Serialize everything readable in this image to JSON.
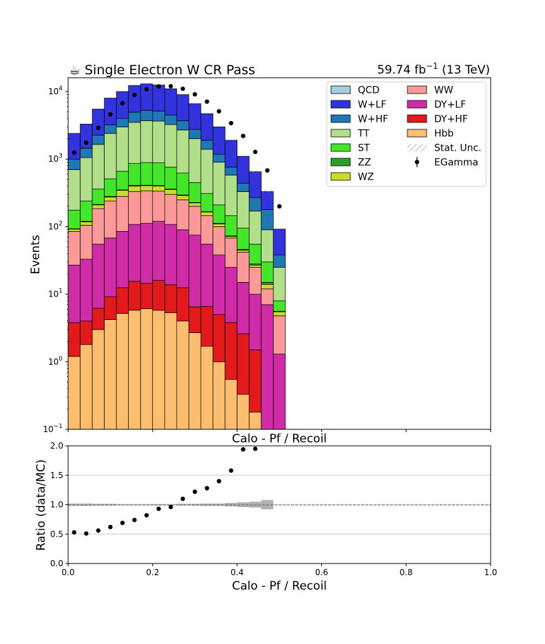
{
  "header": {
    "title_icon": "☕",
    "title": "Single Electron W CR Pass",
    "lumi": "59.74 fb",
    "lumi_exp": "−1",
    "energy": " (13 TeV)"
  },
  "chart_data": [
    {
      "type": "stacked-histogram",
      "ylabel": "Events",
      "yscale": "log",
      "ylim": [
        0.1,
        16000
      ],
      "xlim": [
        0,
        1
      ],
      "bin_width": 0.02857,
      "n_bins": 18,
      "ytick_labels": [
        {
          "value": 0.1,
          "base": "10",
          "exp": "−1"
        },
        {
          "value": 1,
          "base": "10",
          "exp": "0"
        },
        {
          "value": 10,
          "base": "10",
          "exp": "1"
        },
        {
          "value": 100,
          "base": "10",
          "exp": "2"
        },
        {
          "value": 1000,
          "base": "10",
          "exp": "3"
        },
        {
          "value": 10000,
          "base": "10",
          "exp": "4"
        }
      ],
      "legend": {
        "placement": "top-right",
        "entries": [
          {
            "label": "QCD",
            "color": "#a6cee3",
            "kind": "box"
          },
          {
            "label": "W+LF",
            "color": "#3333dd",
            "kind": "box"
          },
          {
            "label": "W+HF",
            "color": "#1f78b4",
            "kind": "box"
          },
          {
            "label": "TT",
            "color": "#b2df8a",
            "kind": "box"
          },
          {
            "label": "ST",
            "color": "#44e62c",
            "kind": "box"
          },
          {
            "label": "ZZ",
            "color": "#2ca02c",
            "kind": "box"
          },
          {
            "label": "WZ",
            "color": "#c8dc2c",
            "kind": "box"
          },
          {
            "label": "WW",
            "color": "#fb9a99",
            "kind": "box"
          },
          {
            "label": "DY+LF",
            "color": "#d02ca8",
            "kind": "box"
          },
          {
            "label": "DY+HF",
            "color": "#e31a1c",
            "kind": "box"
          },
          {
            "label": "Hbb",
            "color": "#fdbf6f",
            "kind": "box"
          },
          {
            "label": "Stat. Unc.",
            "color": "#888888",
            "kind": "hatch"
          },
          {
            "label": "EGamma",
            "color": "#000000",
            "kind": "marker"
          }
        ]
      },
      "stack_order": [
        "Hbb",
        "DY+HF",
        "DY+LF",
        "WW",
        "WZ",
        "ZZ",
        "ST",
        "TT",
        "W+HF",
        "W+LF",
        "QCD"
      ],
      "cumulative_tops": {
        "Hbb": [
          1.2,
          1.8,
          3.0,
          4.2,
          5.2,
          5.8,
          6.1,
          5.8,
          5.3,
          4.0,
          2.7,
          1.7,
          1.0,
          0.55,
          0.33,
          0.18,
          0.0,
          0.0
        ],
        "DY+HF": [
          3.8,
          4.0,
          6.2,
          9.2,
          12.5,
          15.5,
          14.5,
          16.0,
          13.8,
          12.5,
          6.5,
          6.6,
          5.0,
          3.8,
          2.6,
          1.5,
          0.0,
          0.0
        ],
        "DY+LF": [
          27,
          33,
          55,
          68,
          85,
          108,
          112,
          120,
          108,
          90,
          75,
          55,
          38,
          25,
          15,
          10,
          7,
          1.3
        ],
        "WW": [
          85,
          105,
          185,
          240,
          280,
          330,
          340,
          335,
          300,
          250,
          200,
          145,
          100,
          68,
          42,
          25,
          12,
          4.8
        ],
        "WZ": [
          92,
          118,
          210,
          275,
          345,
          400,
          405,
          400,
          355,
          290,
          225,
          165,
          110,
          72,
          45,
          27,
          14,
          5.5
        ],
        "ZZ": [
          93,
          120,
          213,
          280,
          350,
          410,
          410,
          405,
          360,
          295,
          228,
          167,
          112,
          73,
          46,
          28,
          15,
          5.6
        ],
        "ST": [
          175,
          240,
          360,
          510,
          660,
          860,
          890,
          880,
          760,
          620,
          450,
          310,
          210,
          145,
          95,
          55,
          30,
          8
        ],
        "TT": [
          700,
          1050,
          1650,
          2400,
          3000,
          3500,
          3700,
          3650,
          3250,
          2700,
          2000,
          1400,
          900,
          580,
          330,
          170,
          90,
          25
        ],
        "W+HF": [
          1000,
          1450,
          2250,
          3200,
          4000,
          4950,
          5250,
          5150,
          4500,
          3700,
          2750,
          1900,
          1180,
          760,
          440,
          270,
          180,
          38
        ],
        "W+LF": [
          2400,
          3300,
          5500,
          8000,
          10000,
          12300,
          13000,
          12500,
          11000,
          9000,
          6600,
          4700,
          3000,
          1900,
          1100,
          650,
          330,
          92
        ],
        "QCD": [
          2400,
          3300,
          5500,
          8000,
          10000,
          12300,
          13000,
          12500,
          11000,
          9000,
          6600,
          4700,
          3000,
          1900,
          1100,
          650,
          330,
          92
        ]
      },
      "data_series": {
        "name": "EGamma",
        "x": [
          0.0143,
          0.0429,
          0.0714,
          0.1,
          0.1286,
          0.1571,
          0.1857,
          0.2143,
          0.2429,
          0.2714,
          0.3,
          0.3286,
          0.3571,
          0.3857,
          0.4143,
          0.4429,
          0.4714,
          0.5
        ],
        "y": [
          1250,
          1750,
          2900,
          4600,
          6700,
          8900,
          10800,
          11900,
          12000,
          11000,
          9100,
          7100,
          5100,
          3400,
          2200,
          1280,
          680,
          200
        ]
      },
      "stat_unc_bins": [
        15,
        16
      ]
    },
    {
      "type": "scatter",
      "title": "Calo - Pf / Recoil",
      "xlabel": "Calo - Pf / Recoil",
      "ylabel": "Ratio (data/MC)",
      "xlim": [
        0,
        1
      ],
      "ylim": [
        0,
        2
      ],
      "grid": true,
      "xticks": [
        "0.0",
        "0.2",
        "0.4",
        "0.6",
        "0.8",
        "1.0"
      ],
      "yticks": [
        "0.0",
        "0.5",
        "1.0",
        "1.5",
        "2.0"
      ],
      "x": [
        0.0143,
        0.0429,
        0.0714,
        0.1,
        0.1286,
        0.1571,
        0.1857,
        0.2143,
        0.2429,
        0.2714,
        0.3,
        0.3286,
        0.3571,
        0.3857,
        0.4143,
        0.4429
      ],
      "y": [
        0.53,
        0.51,
        0.56,
        0.62,
        0.69,
        0.74,
        0.82,
        0.93,
        0.96,
        1.1,
        1.22,
        1.28,
        1.4,
        1.58,
        1.94,
        1.95
      ],
      "unc_band": [
        0.02,
        0.02,
        0.015,
        0.015,
        0.01,
        0.01,
        0.01,
        0.01,
        0.01,
        0.015,
        0.015,
        0.02,
        0.02,
        0.03,
        0.04,
        0.05,
        0.08
      ]
    }
  ]
}
